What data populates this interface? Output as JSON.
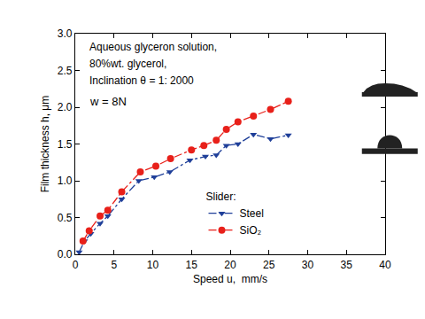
{
  "chart_data": {
    "type": "line",
    "x_label": "Speed u,  mm/s",
    "y_label": "Film thickness h, μm",
    "annotations": [
      "Aqueous glyceron solution,",
      "80%wt. glycerol,",
      "Inclination θ = 1: 2000",
      "w = 8N"
    ],
    "legend_title": "Slider:",
    "legend": "lower center",
    "grid": false,
    "xlim": [
      0,
      40
    ],
    "xticks": [
      0,
      5,
      10,
      15,
      20,
      25,
      30,
      35,
      40
    ],
    "ylim": [
      0,
      3.0
    ],
    "yticks": [
      {
        "value": 0,
        "label": "0.0"
      },
      {
        "value": 0.5,
        "label": "0.5"
      },
      {
        "value": 1,
        "label": "1.0"
      },
      {
        "value": 1.5,
        "label": "1.5"
      },
      {
        "value": 2,
        "label": "2.0"
      },
      {
        "value": 2.5,
        "label": "2.5"
      },
      {
        "value": 3,
        "label": "3.0"
      }
    ],
    "series": [
      {
        "name": "Steel",
        "color": "#1f3f99",
        "marker": "triangle-down",
        "line_style": "dashdot",
        "x": [
          0.5,
          1.2,
          2.0,
          3.2,
          4.2,
          6.0,
          8.2,
          10.2,
          12.2,
          14.8,
          16.8,
          18.2,
          19.5,
          21.0,
          23.0,
          25.2,
          27.5
        ],
        "values": [
          0.03,
          0.18,
          0.28,
          0.42,
          0.52,
          0.75,
          1.0,
          1.05,
          1.12,
          1.28,
          1.33,
          1.35,
          1.48,
          1.5,
          1.63,
          1.57,
          1.62
        ]
      },
      {
        "name": "SiO₂",
        "color": "#e8201a",
        "marker": "circle",
        "line_style": "dashdot",
        "x": [
          1.0,
          1.8,
          3.2,
          4.2,
          6.0,
          8.4,
          10.4,
          12.3,
          15.0,
          16.6,
          18.2,
          19.5,
          21.0,
          23.0,
          25.2,
          27.5
        ],
        "values": [
          0.18,
          0.32,
          0.52,
          0.6,
          0.85,
          1.12,
          1.2,
          1.3,
          1.42,
          1.48,
          1.55,
          1.7,
          1.8,
          1.88,
          1.97,
          2.08
        ]
      }
    ]
  }
}
